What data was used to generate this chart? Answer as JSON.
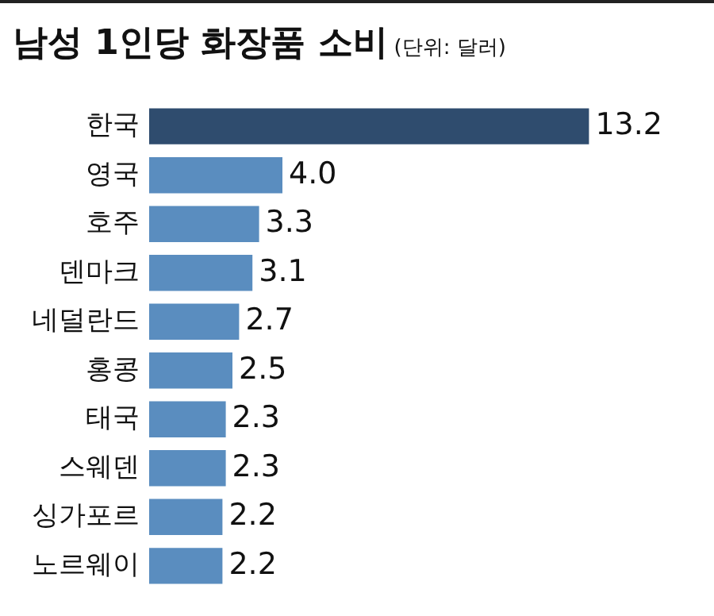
{
  "chart_data": {
    "type": "bar",
    "orientation": "horizontal",
    "title": "남성 1인당 화장품 소비",
    "subtitle": "(단위: 달러)",
    "categories": [
      "한국",
      "영국",
      "호주",
      "덴마크",
      "네덜란드",
      "홍콩",
      "태국",
      "스웨덴",
      "싱가포르",
      "노르웨이"
    ],
    "values": [
      13.2,
      4.0,
      3.3,
      3.1,
      2.7,
      2.5,
      2.3,
      2.3,
      2.2,
      2.2
    ],
    "colors": [
      "#2f4c6e",
      "#5a8dbf",
      "#5a8dbf",
      "#5a8dbf",
      "#5a8dbf",
      "#5a8dbf",
      "#5a8dbf",
      "#5a8dbf",
      "#5a8dbf",
      "#5a8dbf"
    ],
    "value_labels": [
      "13.2",
      "4.0",
      "3.3",
      "3.1",
      "2.7",
      "2.5",
      "2.3",
      "2.3",
      "2.2",
      "2.2"
    ],
    "tick_labels": "y",
    "legend": false
  }
}
